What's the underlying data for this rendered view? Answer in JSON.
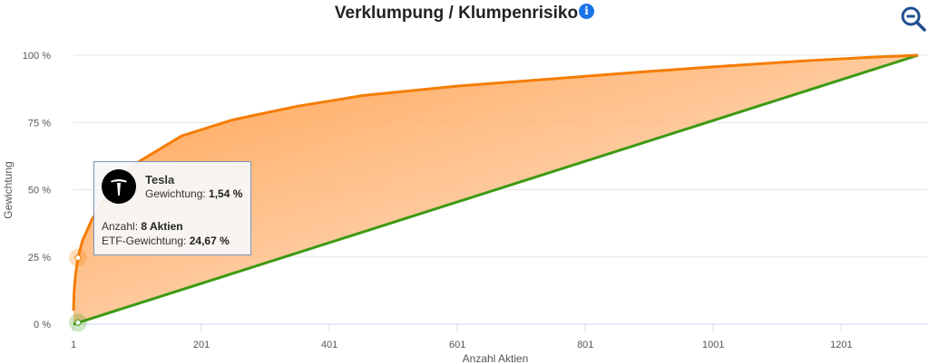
{
  "title": "Verklumpung / Klumpenrisiko",
  "icons": {
    "info": "info-icon",
    "zoom": "zoom-out-icon",
    "logo": "tesla-logo"
  },
  "tooltip": {
    "name": "Tesla",
    "weight_label": "Gewichtung:",
    "weight_value": "1,54 %",
    "count_label": "Anzahl:",
    "count_value": "8 Aktien",
    "etf_label": "ETF-Gewichtung:",
    "etf_value": "24,67 %"
  },
  "chart_data": {
    "type": "area",
    "xlabel": "Anzahl Aktien",
    "ylabel": "Gewichtung",
    "xlim": [
      1,
      1321
    ],
    "ylim": [
      0,
      100
    ],
    "x_ticks": [
      "1",
      "201",
      "401",
      "601",
      "801",
      "1001",
      "1201"
    ],
    "y_ticks": [
      "0 %",
      "25 %",
      "50 %",
      "75 %",
      "100 %"
    ],
    "grid": true,
    "colors": {
      "curve": "#f57c00",
      "diagonal": "#3c9a12",
      "fill": "#ffb27a"
    },
    "series": [
      {
        "role": "cumulative",
        "x": [
          1,
          2,
          4,
          8,
          15,
          30,
          60,
          100,
          170,
          250,
          350,
          453,
          600,
          737,
          900,
          1021,
          1150,
          1250,
          1321
        ],
        "y": [
          5,
          12,
          18,
          24.67,
          31,
          39,
          50,
          60,
          70,
          76,
          81,
          85,
          88.5,
          91,
          94,
          96,
          98,
          99.3,
          100
        ]
      },
      {
        "role": "equal",
        "x": [
          1,
          1321
        ],
        "y": [
          0,
          100
        ]
      }
    ],
    "highlighted": [
      {
        "x": 8,
        "y": 24.67
      },
      {
        "x": 8,
        "y": 0.6
      }
    ]
  }
}
